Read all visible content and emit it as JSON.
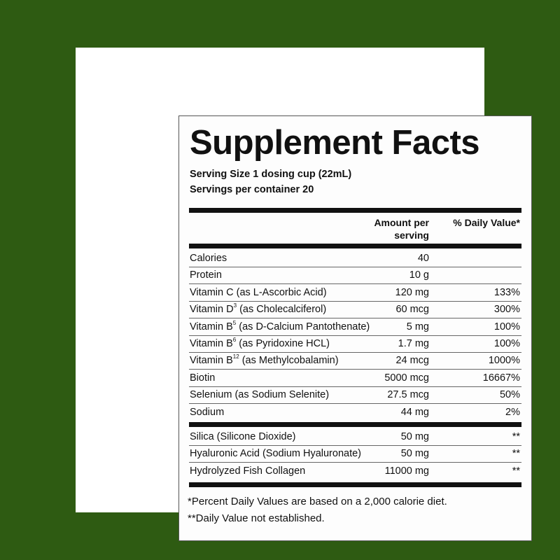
{
  "colors": {
    "background": "#2e5b12",
    "panel": "#ffffff",
    "text": "#111111"
  },
  "title": "Supplement Facts",
  "serving_size": "Serving Size 1 dosing cup (22mL)",
  "servings_per_container": "Servings per container 20",
  "headers": {
    "amount_line1": "Amount per",
    "amount_line2": "serving",
    "daily_value": "% Daily Value*"
  },
  "rows": [
    {
      "name": "Calories",
      "sup": "",
      "rest": "",
      "amount": "40",
      "dv": ""
    },
    {
      "name": "Protein",
      "sup": "",
      "rest": "",
      "amount": "10 g",
      "dv": ""
    },
    {
      "name": "Vitamin C (as L-Ascorbic Acid)",
      "sup": "",
      "rest": "",
      "amount": "120 mg",
      "dv": "133%"
    },
    {
      "name": "Vitamin D",
      "sup": "3",
      "rest": " (as Cholecalciferol)",
      "amount": "60 mcg",
      "dv": "300%"
    },
    {
      "name": "Vitamin B",
      "sup": "5",
      "rest": " (as D-Calcium Pantothenate)",
      "amount": "5 mg",
      "dv": "100%"
    },
    {
      "name": "Vitamin B",
      "sup": "6",
      "rest": " (as Pyridoxine HCL)",
      "amount": "1.7 mg",
      "dv": "100%"
    },
    {
      "name": "Vitamin B",
      "sup": "12",
      "rest": " (as Methylcobalamin)",
      "amount": "24 mcg",
      "dv": "1000%"
    },
    {
      "name": "Biotin",
      "sup": "",
      "rest": "",
      "amount": "5000 mcg",
      "dv": "16667%"
    },
    {
      "name": "Selenium (as Sodium Selenite)",
      "sup": "",
      "rest": "",
      "amount": "27.5 mcg",
      "dv": "50%"
    },
    {
      "name": "Sodium",
      "sup": "",
      "rest": "",
      "amount": "44 mg",
      "dv": "2%"
    }
  ],
  "other_rows": [
    {
      "name": "Silica (Silicone Dioxide)",
      "amount": "50 mg",
      "dv": "**"
    },
    {
      "name": "Hyaluronic Acid (Sodium Hyaluronate)",
      "amount": "50 mg",
      "dv": "**"
    },
    {
      "name": "Hydrolyzed Fish Collagen",
      "amount": "11000 mg",
      "dv": "**"
    }
  ],
  "footnotes": [
    "*Percent Daily Values are based on a 2,000 calorie diet.",
    "**Daily Value not established."
  ]
}
